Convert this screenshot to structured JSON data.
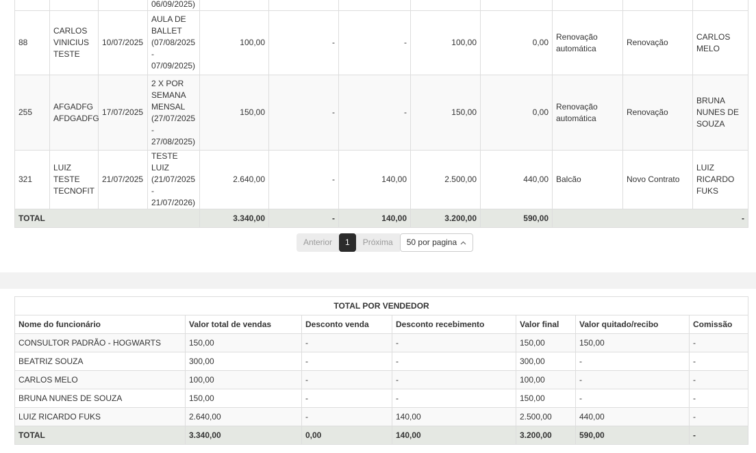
{
  "sales_table": {
    "partial_row": {
      "plan": "06/09/2025)"
    },
    "rows": [
      {
        "id": "88",
        "cliente": "CARLOS VINICIUS TESTE",
        "data": "10/07/2025",
        "plano": "AULA DE BALLET (07/08/2025 - 07/09/2025)",
        "valor": "100,00",
        "desconto": "-",
        "desconto_rec": "-",
        "valor_final": "100,00",
        "quitado": "0,00",
        "origem": "Renovação automática",
        "tipo": "Renovação",
        "vendedor": "CARLOS MELO"
      },
      {
        "id": "255",
        "cliente": "AFGADFG AFDGADFG",
        "data": "17/07/2025",
        "plano": "2 X POR SEMANA MENSAL (27/07/2025 - 27/08/2025)",
        "valor": "150,00",
        "desconto": "-",
        "desconto_rec": "-",
        "valor_final": "150,00",
        "quitado": "0,00",
        "origem": "Renovação automática",
        "tipo": "Renovação",
        "vendedor": "BRUNA NUNES DE SOUZA"
      },
      {
        "id": "321",
        "cliente": "LUIZ TESTE TECNOFIT",
        "data": "21/07/2025",
        "plano": "TESTE LUIZ (21/07/2025 - 21/07/2026)",
        "valor": "2.640,00",
        "desconto": "-",
        "desconto_rec": "140,00",
        "valor_final": "2.500,00",
        "quitado": "440,00",
        "origem": "Balcão",
        "tipo": "Novo Contrato",
        "vendedor": "LUIZ RICARDO FUKS"
      }
    ],
    "total": {
      "label": "TOTAL",
      "valor": "3.340,00",
      "desconto": "-",
      "desconto_rec": "140,00",
      "valor_final": "3.200,00",
      "quitado": "590,00",
      "vendedor": "-"
    }
  },
  "pagination": {
    "prev": "Anterior",
    "current": "1",
    "next": "Próxima",
    "page_size": "50 por pagina",
    "page_size_icon": "chevron-up-icon"
  },
  "vendor_table": {
    "caption": "TOTAL POR VENDEDOR",
    "headers": [
      "Nome do funcionário",
      "Valor total de vendas",
      "Desconto venda",
      "Desconto recebimento",
      "Valor final",
      "Valor quitado/recibo",
      "Comissão"
    ],
    "rows": [
      [
        "CONSULTOR PADRÃO - HOGWARTS",
        "150,00",
        "-",
        "-",
        "150,00",
        "150,00",
        "-"
      ],
      [
        "BEATRIZ SOUZA",
        "300,00",
        "-",
        "-",
        "300,00",
        "-",
        "-"
      ],
      [
        "CARLOS MELO",
        "100,00",
        "-",
        "-",
        "100,00",
        "-",
        "-"
      ],
      [
        "BRUNA NUNES DE SOUZA",
        "150,00",
        "-",
        "-",
        "150,00",
        "-",
        "-"
      ],
      [
        "LUIZ RICARDO FUKS",
        "2.640,00",
        "-",
        "140,00",
        "2.500,00",
        "440,00",
        "-"
      ]
    ],
    "total": [
      "TOTAL",
      "3.340,00",
      "0,00",
      "140,00",
      "3.200,00",
      "590,00",
      "-"
    ]
  },
  "colors": {
    "total_row_bg": "#e5e8e3",
    "page_bg": "#f2f2f2",
    "pager_active": "#2b2b2b"
  }
}
